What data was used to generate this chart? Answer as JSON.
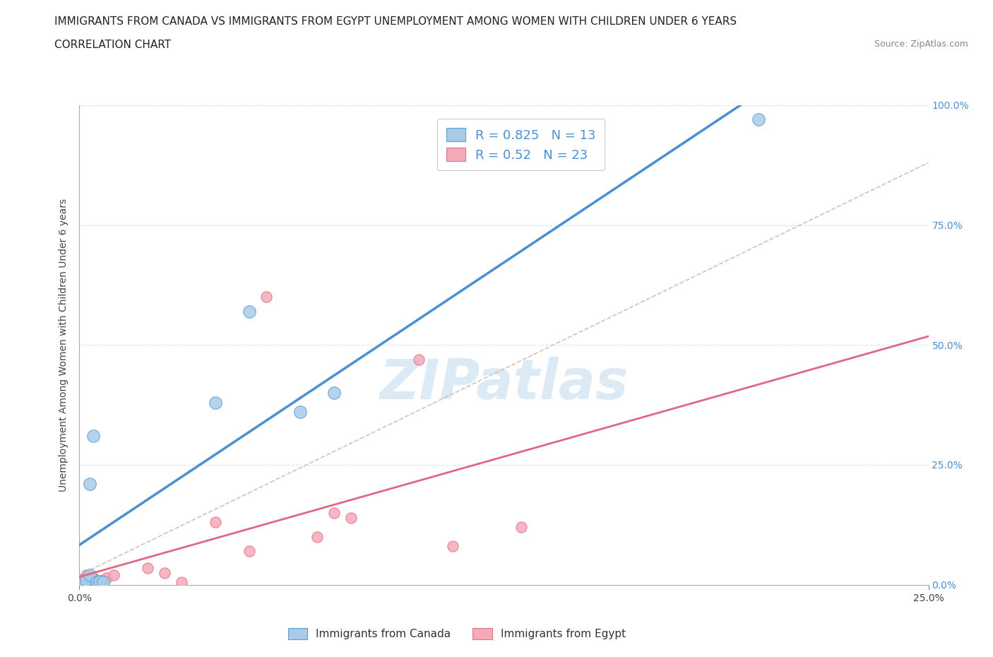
{
  "title_line1": "IMMIGRANTS FROM CANADA VS IMMIGRANTS FROM EGYPT UNEMPLOYMENT AMONG WOMEN WITH CHILDREN UNDER 6 YEARS",
  "title_line2": "CORRELATION CHART",
  "source_text": "Source: ZipAtlas.com",
  "ylabel": "Unemployment Among Women with Children Under 6 years",
  "xmin": 0.0,
  "xmax": 0.25,
  "ymin": 0.0,
  "ymax": 1.0,
  "canada_x": [
    0.001,
    0.002,
    0.003,
    0.003,
    0.004,
    0.005,
    0.006,
    0.007,
    0.04,
    0.05,
    0.065,
    0.075,
    0.2
  ],
  "canada_y": [
    0.005,
    0.01,
    0.02,
    0.21,
    0.31,
    0.005,
    0.007,
    0.005,
    0.38,
    0.57,
    0.36,
    0.4,
    0.97
  ],
  "egypt_x": [
    0.001,
    0.001,
    0.002,
    0.002,
    0.003,
    0.004,
    0.005,
    0.006,
    0.007,
    0.008,
    0.01,
    0.02,
    0.025,
    0.03,
    0.04,
    0.05,
    0.055,
    0.07,
    0.075,
    0.08,
    0.1,
    0.11,
    0.13
  ],
  "egypt_y": [
    0.005,
    0.01,
    0.005,
    0.02,
    0.01,
    0.015,
    0.01,
    0.005,
    0.01,
    0.015,
    0.02,
    0.035,
    0.025,
    0.005,
    0.13,
    0.07,
    0.6,
    0.1,
    0.15,
    0.14,
    0.47,
    0.08,
    0.12
  ],
  "canada_color": "#a8cce8",
  "egypt_color": "#f5aab8",
  "canada_edge_color": "#5a9fd4",
  "egypt_edge_color": "#e07090",
  "canada_line_color": "#4a8fd4",
  "egypt_line_color": "#e06880",
  "diag_line_color": "#c8b0b0",
  "canada_R": 0.825,
  "canada_N": 13,
  "egypt_R": 0.52,
  "egypt_N": 23,
  "legend_canada": "Immigrants from Canada",
  "legend_egypt": "Immigrants from Egypt",
  "watermark": "ZIPatlas",
  "watermark_color": "#c8dff0",
  "ytick_labels_right": [
    "0.0%",
    "25.0%",
    "50.0%",
    "75.0%",
    "100.0%"
  ],
  "ytick_vals_right": [
    0.0,
    0.25,
    0.5,
    0.75,
    1.0
  ],
  "xtick_labels": [
    "0.0%",
    "25.0%"
  ],
  "xtick_vals": [
    0.0,
    0.25
  ],
  "title_fontsize": 11,
  "axis_label_fontsize": 10,
  "tick_fontsize": 10,
  "background_color": "#ffffff",
  "grid_color": "#d8e4ee",
  "scatter_size_canada": 160,
  "scatter_size_egypt": 120
}
